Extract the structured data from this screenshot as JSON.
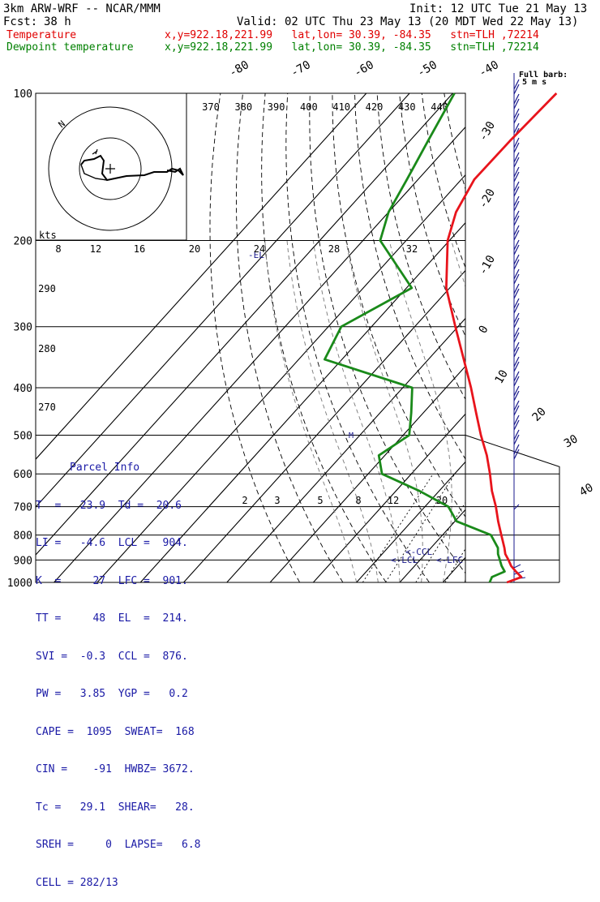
{
  "header": {
    "model": "3km ARW-WRF -- NCAR/MMM",
    "init": "Init: 12 UTC Tue 21 May 13",
    "fcst_label": "Fcst:",
    "fcst_value": "38 h",
    "valid": "Valid: 02 UTC Thu 23 May 13 (20 MDT Wed 22 May 13)",
    "temp_label": "Temperature",
    "dew_label": "Dewpoint temperature",
    "temp_info": "x,y=922.18,221.99   lat,lon= 30.39, -84.35   stn=TLH ,72214",
    "dew_info": "x,y=922.18,221.99   lat,lon= 30.39, -84.35   stn=TLH ,72214"
  },
  "colors": {
    "temperature": "#e8141c",
    "dewpoint": "#1a8a1a",
    "isotherm": "#000000",
    "barbs": "#1a1a8c",
    "parcel_text": "#1a1aa6"
  },
  "parcel": {
    "title": "Parcel Info",
    "rows": [
      "T  =   23.9  Td =  20.6",
      "LI =   -4.6  LCL =  904.",
      "K  =     27  LFC =  901.",
      "TT =     48  EL  =  214.",
      "SVI =  -0.3  CCL =  876.",
      "PW =   3.85  YGP =   0.2",
      "CAPE =  1095  SWEAT=  168",
      "CIN =    -91  HWBZ= 3672.",
      "Tc =   29.1  SHEAR=   28.",
      "SREH =     0  LAPSE=   6.8",
      "CELL = 282/13"
    ]
  },
  "hodograph": {
    "units": "kts",
    "ring_label": "N",
    "speed_labels": [
      "8",
      "12",
      "16",
      "20",
      "24",
      "28",
      "32"
    ]
  },
  "barb_legend": {
    "line1": "Full barb:",
    "line2": "5 m s"
  },
  "chart_data": {
    "type": "line",
    "chart_kind": "skew-T log-P sounding",
    "y_axis": {
      "scale": "log",
      "pressure_ticks": [
        "100",
        "200",
        "300",
        "400",
        "500",
        "600",
        "700",
        "800",
        "900",
        "1000"
      ],
      "range": [
        100,
        1000
      ]
    },
    "isotherm_labels": [
      "-80",
      "-70",
      "-60",
      "-50",
      "-40",
      "-30",
      "-20",
      "-10",
      "0",
      "10",
      "20",
      "30",
      "40"
    ],
    "theta_labels_top": [
      "370",
      "380",
      "390",
      "400",
      "410",
      "420",
      "430",
      "440"
    ],
    "theta_labels_left": [
      "290",
      "280",
      "270"
    ],
    "mixing_ratio_labels": [
      "2",
      "3",
      "5",
      "8",
      "12",
      "20"
    ],
    "annotations": [
      "-EL",
      "<-CCL",
      "<-LCL",
      "<-LFC"
    ],
    "series": [
      {
        "name": "Temperature",
        "p": [
          1000,
          975,
          950,
          925,
          900,
          875,
          850,
          800,
          750,
          700,
          650,
          600,
          550,
          500,
          450,
          400,
          350,
          300,
          250,
          200,
          175,
          150,
          125,
          100
        ],
        "t": [
          24.8,
          27.0,
          24.6,
          22.3,
          20.5,
          18.5,
          17.0,
          13.6,
          10.0,
          6.4,
          2.2,
          -1.8,
          -6.4,
          -12.0,
          -17.8,
          -24.2,
          -31.8,
          -40.6,
          -50.8,
          -60.4,
          -64.4,
          -67.0,
          -66.8,
          -66.0
        ]
      },
      {
        "name": "Dewpoint temperature",
        "p": [
          1000,
          975,
          950,
          925,
          900,
          875,
          850,
          800,
          750,
          700,
          650,
          600,
          550,
          500,
          450,
          400,
          350,
          300,
          250,
          200,
          175,
          150,
          125,
          100
        ],
        "t": [
          20.8,
          20.2,
          22.0,
          20.1,
          18.5,
          16.8,
          15.5,
          11.2,
          0.4,
          -4.6,
          -14.6,
          -26.8,
          -31.4,
          -28.6,
          -32.8,
          -37.8,
          -64.0,
          -67.0,
          -58.8,
          -76.0,
          -80.0,
          -82.6,
          -85.8,
          -89.6
        ]
      }
    ]
  }
}
